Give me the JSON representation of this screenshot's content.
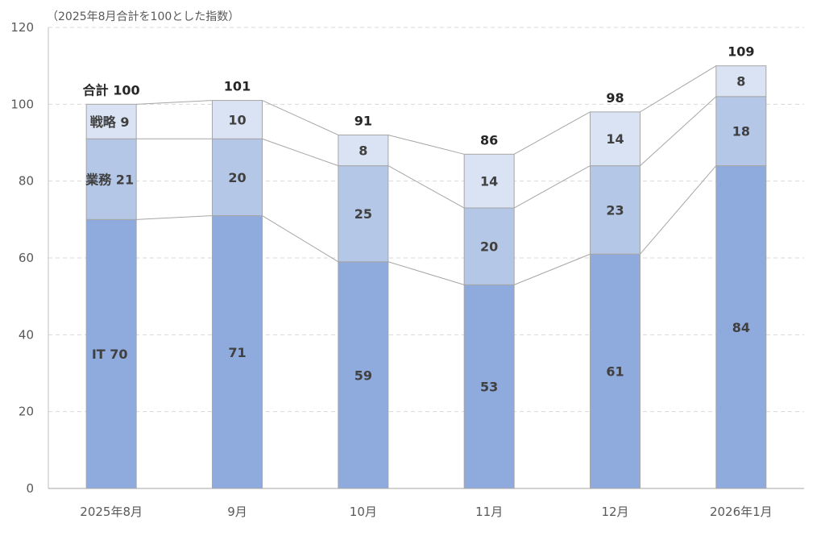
{
  "chart_data": {
    "type": "bar",
    "stacked": true,
    "subtitle": "（2025年8月合計を100とした指数）",
    "categories": [
      "2025年8月",
      "9月",
      "10月",
      "11月",
      "12月",
      "2026年1月"
    ],
    "series": [
      {
        "name": "IT",
        "values": [
          70,
          71,
          59,
          53,
          61,
          84
        ],
        "color": "#8faadc"
      },
      {
        "name": "業務",
        "values": [
          21,
          20,
          25,
          20,
          23,
          18
        ],
        "color": "#b4c7e7"
      },
      {
        "name": "戦略",
        "values": [
          9,
          10,
          8,
          14,
          14,
          8
        ],
        "color": "#dae3f3"
      }
    ],
    "totals": [
      100,
      101,
      91,
      86,
      98,
      109
    ],
    "segment_labels": [
      [
        "IT 70",
        "71",
        "59",
        "53",
        "61",
        "84"
      ],
      [
        "業務 21",
        "20",
        "25",
        "20",
        "23",
        "18"
      ],
      [
        "戦略 9",
        "10",
        "8",
        "14",
        "14",
        "8"
      ]
    ],
    "total_labels": [
      "合計 100",
      "101",
      "91",
      "86",
      "98",
      "109"
    ],
    "ylim": [
      0,
      120
    ],
    "yticks": [
      0,
      20,
      40,
      60,
      80,
      100,
      120
    ],
    "grid": true,
    "series_lines": true,
    "legend": "none"
  }
}
